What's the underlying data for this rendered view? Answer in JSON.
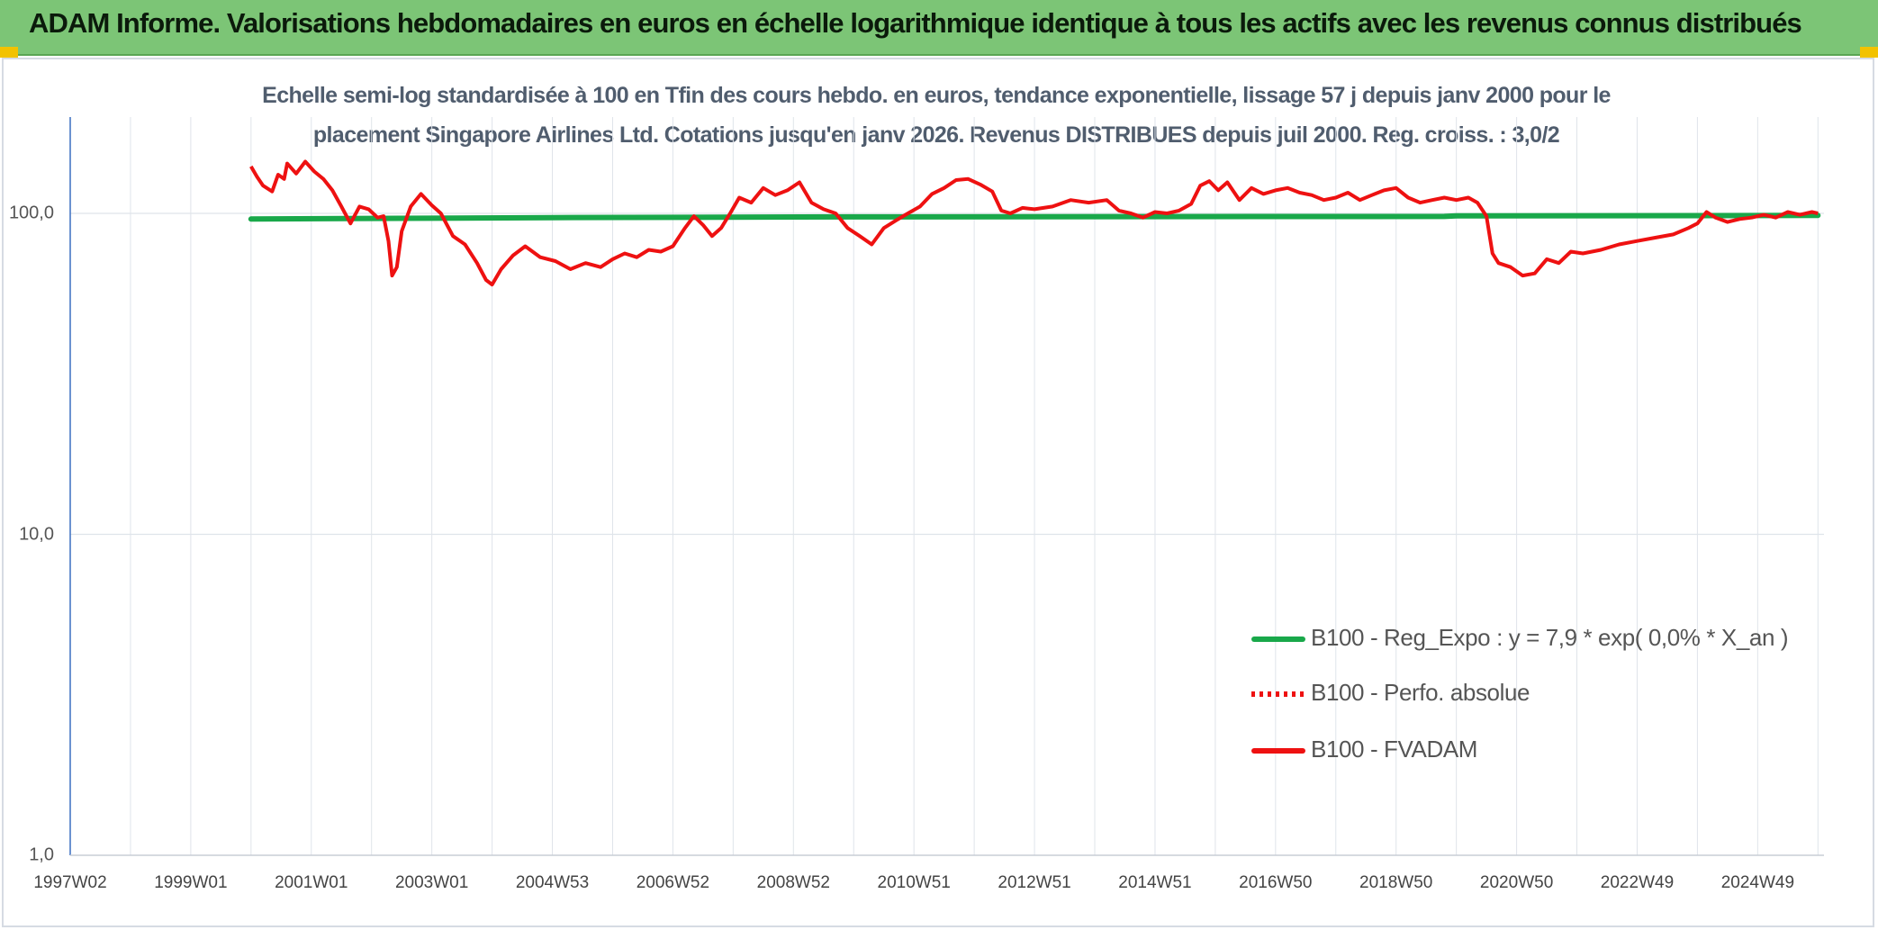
{
  "header": {
    "title": "ADAM Informe. Valorisations hebdomadaires en euros en échelle logarithmique identique à tous les actifs avec les revenus connus distribués"
  },
  "chart_data": {
    "type": "line",
    "title_line1": "Echelle semi-log standardisée à 100 en Tfin des cours hebdo. en euros, tendance exponentielle, lissage 57 j depuis janv 2000 pour le",
    "title_line2": "placement Singapore Airlines Ltd. Cotations jusqu'en janv 2026. Revenus DISTRIBUES depuis juil 2000. Reg. croiss. : 3,0/2",
    "y_scale": "log",
    "ylim": [
      1,
      190
    ],
    "y_ticks": [
      {
        "value": 100,
        "label": "100,0"
      },
      {
        "value": 10,
        "label": "10,0"
      },
      {
        "value": 1,
        "label": "1,0"
      }
    ],
    "x_unit": "year",
    "xlim": [
      1997.0,
      2026.1
    ],
    "x_ticks": [
      {
        "value": 1997.0,
        "label": "1997W02"
      },
      {
        "value": 1999.0,
        "label": "1999W01"
      },
      {
        "value": 2001.0,
        "label": "2001W01"
      },
      {
        "value": 2003.0,
        "label": "2003W01"
      },
      {
        "value": 2005.0,
        "label": "2004W53"
      },
      {
        "value": 2007.0,
        "label": "2006W52"
      },
      {
        "value": 2009.0,
        "label": "2008W52"
      },
      {
        "value": 2011.0,
        "label": "2010W51"
      },
      {
        "value": 2013.0,
        "label": "2012W51"
      },
      {
        "value": 2015.0,
        "label": "2014W51"
      },
      {
        "value": 2017.0,
        "label": "2016W50"
      },
      {
        "value": 2019.0,
        "label": "2018W50"
      },
      {
        "value": 2021.0,
        "label": "2020W50"
      },
      {
        "value": 2023.0,
        "label": "2022W49"
      },
      {
        "value": 2025.0,
        "label": "2024W49"
      }
    ],
    "minor_grid_step_years": 1,
    "legend_position": "bottom-right",
    "series": [
      {
        "name": "B100 - Reg_Expo : y = 7,9 * exp( 0,0% *  X_an )",
        "color": "#19a84a",
        "style": "solid-thick",
        "points": [
          [
            2000.0,
            96
          ],
          [
            2005.0,
            97
          ],
          [
            2010.0,
            97.5
          ],
          [
            2015.0,
            97.7
          ],
          [
            2019.8,
            97.8
          ],
          [
            2020.0,
            98.2
          ],
          [
            2026.0,
            98.5
          ]
        ]
      },
      {
        "name": "B100 - Perfo. absolue",
        "color": "#ee1111",
        "style": "dotted",
        "points": []
      },
      {
        "name": "B100 - FVADAM",
        "color": "#ee1111",
        "style": "solid",
        "points": [
          [
            2000.0,
            140
          ],
          [
            2000.1,
            130
          ],
          [
            2000.2,
            122
          ],
          [
            2000.35,
            117
          ],
          [
            2000.45,
            132
          ],
          [
            2000.55,
            128
          ],
          [
            2000.6,
            143
          ],
          [
            2000.75,
            133
          ],
          [
            2000.9,
            145
          ],
          [
            2001.05,
            135
          ],
          [
            2001.2,
            128
          ],
          [
            2001.35,
            118
          ],
          [
            2001.5,
            105
          ],
          [
            2001.65,
            93
          ],
          [
            2001.8,
            105
          ],
          [
            2001.95,
            103
          ],
          [
            2002.1,
            97
          ],
          [
            2002.2,
            98
          ],
          [
            2002.28,
            82
          ],
          [
            2002.34,
            64
          ],
          [
            2002.42,
            68
          ],
          [
            2002.5,
            88
          ],
          [
            2002.65,
            105
          ],
          [
            2002.82,
            115
          ],
          [
            2003.0,
            106
          ],
          [
            2003.15,
            100
          ],
          [
            2003.35,
            85
          ],
          [
            2003.55,
            80
          ],
          [
            2003.75,
            70
          ],
          [
            2003.9,
            62
          ],
          [
            2004.0,
            60
          ],
          [
            2004.15,
            67
          ],
          [
            2004.35,
            74
          ],
          [
            2004.55,
            79
          ],
          [
            2004.8,
            73
          ],
          [
            2005.05,
            71
          ],
          [
            2005.3,
            67
          ],
          [
            2005.55,
            70
          ],
          [
            2005.8,
            68
          ],
          [
            2006.0,
            72
          ],
          [
            2006.2,
            75
          ],
          [
            2006.4,
            73
          ],
          [
            2006.6,
            77
          ],
          [
            2006.8,
            76
          ],
          [
            2007.0,
            79
          ],
          [
            2007.2,
            90
          ],
          [
            2007.35,
            98
          ],
          [
            2007.5,
            92
          ],
          [
            2007.65,
            85
          ],
          [
            2007.8,
            90
          ],
          [
            2007.95,
            100
          ],
          [
            2008.1,
            112
          ],
          [
            2008.3,
            108
          ],
          [
            2008.5,
            120
          ],
          [
            2008.7,
            114
          ],
          [
            2008.9,
            118
          ],
          [
            2009.1,
            125
          ],
          [
            2009.3,
            108
          ],
          [
            2009.5,
            103
          ],
          [
            2009.7,
            100
          ],
          [
            2009.9,
            90
          ],
          [
            2010.1,
            85
          ],
          [
            2010.3,
            80
          ],
          [
            2010.5,
            90
          ],
          [
            2010.7,
            95
          ],
          [
            2010.9,
            100
          ],
          [
            2011.1,
            105
          ],
          [
            2011.3,
            115
          ],
          [
            2011.5,
            120
          ],
          [
            2011.7,
            127
          ],
          [
            2011.9,
            128
          ],
          [
            2012.1,
            123
          ],
          [
            2012.3,
            117
          ],
          [
            2012.45,
            102
          ],
          [
            2012.6,
            100
          ],
          [
            2012.8,
            104
          ],
          [
            2013.0,
            103
          ],
          [
            2013.3,
            105
          ],
          [
            2013.6,
            110
          ],
          [
            2013.9,
            108
          ],
          [
            2014.2,
            110
          ],
          [
            2014.4,
            102
          ],
          [
            2014.6,
            100
          ],
          [
            2014.8,
            97
          ],
          [
            2015.0,
            101
          ],
          [
            2015.2,
            100
          ],
          [
            2015.4,
            102
          ],
          [
            2015.6,
            107
          ],
          [
            2015.75,
            122
          ],
          [
            2015.9,
            126
          ],
          [
            2016.05,
            118
          ],
          [
            2016.2,
            125
          ],
          [
            2016.4,
            110
          ],
          [
            2016.6,
            120
          ],
          [
            2016.8,
            115
          ],
          [
            2017.0,
            118
          ],
          [
            2017.2,
            120
          ],
          [
            2017.4,
            116
          ],
          [
            2017.6,
            114
          ],
          [
            2017.8,
            110
          ],
          [
            2018.0,
            112
          ],
          [
            2018.2,
            116
          ],
          [
            2018.4,
            110
          ],
          [
            2018.6,
            114
          ],
          [
            2018.8,
            118
          ],
          [
            2019.0,
            120
          ],
          [
            2019.2,
            112
          ],
          [
            2019.4,
            108
          ],
          [
            2019.6,
            110
          ],
          [
            2019.8,
            112
          ],
          [
            2020.0,
            110
          ],
          [
            2020.2,
            112
          ],
          [
            2020.35,
            108
          ],
          [
            2020.5,
            98
          ],
          [
            2020.6,
            75
          ],
          [
            2020.7,
            70
          ],
          [
            2020.9,
            68
          ],
          [
            2021.1,
            64
          ],
          [
            2021.3,
            65
          ],
          [
            2021.5,
            72
          ],
          [
            2021.7,
            70
          ],
          [
            2021.9,
            76
          ],
          [
            2022.1,
            75
          ],
          [
            2022.4,
            77
          ],
          [
            2022.7,
            80
          ],
          [
            2023.0,
            82
          ],
          [
            2023.3,
            84
          ],
          [
            2023.6,
            86
          ],
          [
            2023.85,
            90
          ],
          [
            2024.0,
            93
          ],
          [
            2024.15,
            101
          ],
          [
            2024.3,
            97
          ],
          [
            2024.5,
            94
          ],
          [
            2024.7,
            96
          ],
          [
            2024.9,
            97
          ],
          [
            2025.1,
            99
          ],
          [
            2025.3,
            97
          ],
          [
            2025.5,
            101
          ],
          [
            2025.7,
            99
          ],
          [
            2025.9,
            101
          ],
          [
            2026.0,
            100
          ]
        ]
      }
    ]
  }
}
